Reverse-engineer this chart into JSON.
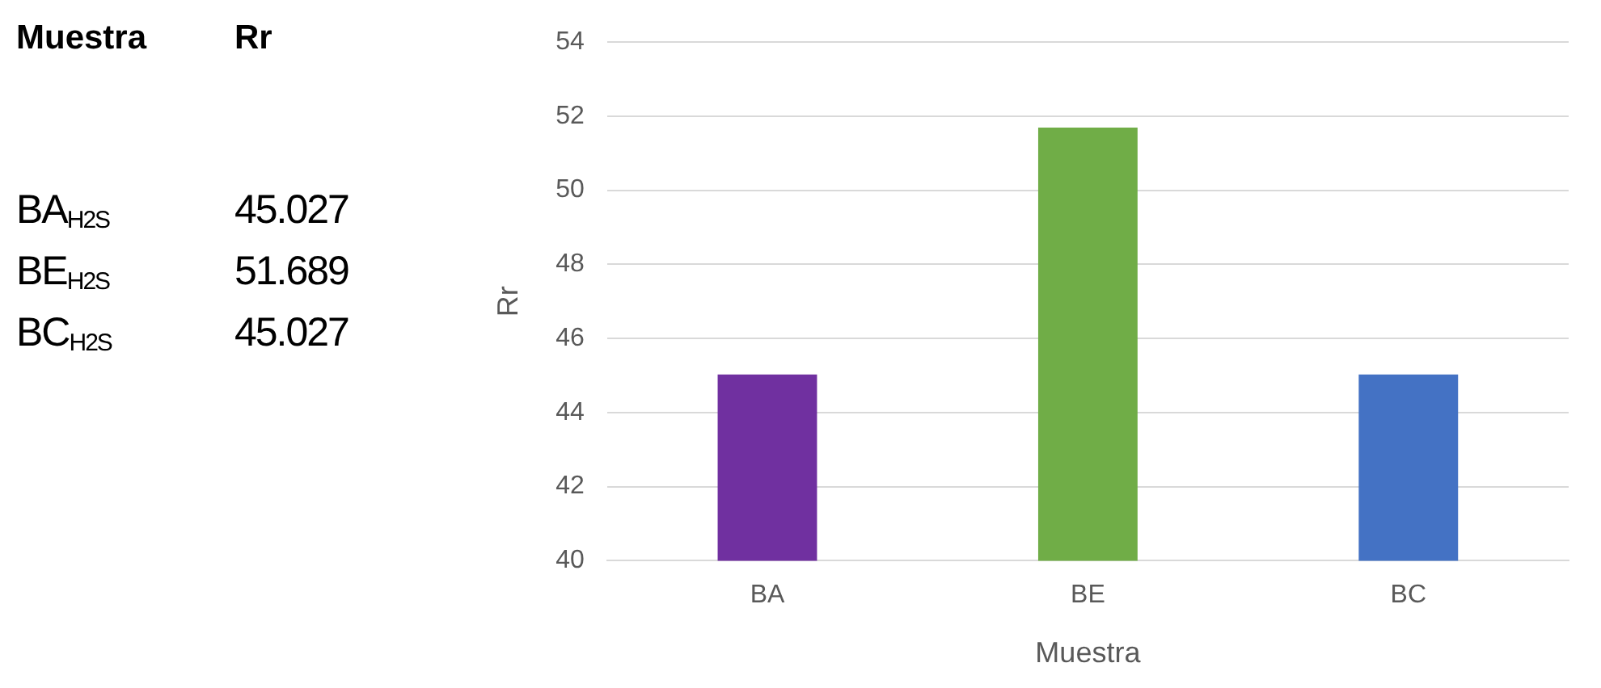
{
  "chart_data": [
    {
      "type": "other",
      "annotations": [
        "Muestra",
        "Rr",
        "BA$_{H2S}$",
        "45.027",
        "BE$_{H2S}$",
        "51.689",
        "BC$_{H2S}$",
        "45.027"
      ]
    },
    {
      "type": "bar",
      "xlabel": "Muestra",
      "ylabel": "Rr",
      "categories": [
        "BA",
        "BE",
        "BC"
      ],
      "values": [
        45.027,
        51.689,
        45.027
      ],
      "colors": [
        "#7030a0",
        "#70ad47",
        "#4472c4"
      ],
      "ylim": [
        40,
        54
      ],
      "yticks": [
        40,
        42,
        44,
        46,
        48,
        50,
        52,
        54
      ],
      "grid": "y",
      "legend": false
    }
  ]
}
